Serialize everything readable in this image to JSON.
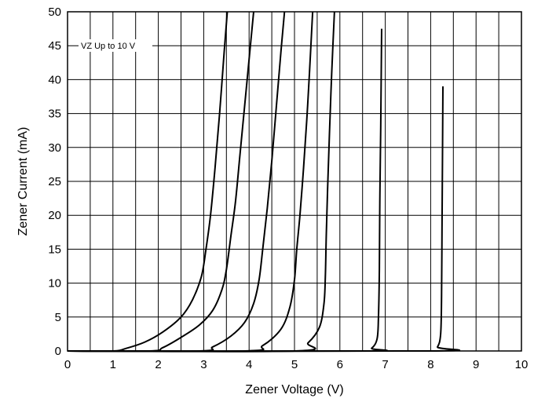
{
  "chart_data": {
    "type": "line",
    "title": "",
    "xlabel": "Zener Voltage (V)",
    "ylabel": "Zener Current (mA)",
    "xlim": [
      0,
      10
    ],
    "ylim": [
      0,
      50
    ],
    "x_ticks": [
      "0",
      "1",
      "2",
      "3",
      "4",
      "5",
      "6",
      "7",
      "8",
      "9",
      "10"
    ],
    "y_ticks": [
      "0",
      "5",
      "10",
      "15",
      "20",
      "25",
      "30",
      "35",
      "40",
      "45",
      "50"
    ],
    "grid": true,
    "minor_x_grid_step": 0.5,
    "annotation": "VZ Up to 10 V",
    "line_color": "#000000",
    "series": [
      {
        "points": [
          [
            0,
            0
          ],
          [
            1.0,
            0
          ],
          [
            1.3,
            0.4
          ],
          [
            1.7,
            1.3
          ],
          [
            2.1,
            2.8
          ],
          [
            2.5,
            5.0
          ],
          [
            2.75,
            7.5
          ],
          [
            2.95,
            11
          ],
          [
            3.05,
            15
          ],
          [
            3.15,
            20
          ],
          [
            3.25,
            27
          ],
          [
            3.35,
            35
          ],
          [
            3.45,
            44
          ],
          [
            3.52,
            50
          ]
        ]
      },
      {
        "points": [
          [
            0,
            0
          ],
          [
            1.8,
            0
          ],
          [
            2.1,
            0.5
          ],
          [
            2.5,
            2.0
          ],
          [
            2.9,
            3.8
          ],
          [
            3.2,
            6.0
          ],
          [
            3.4,
            9.0
          ],
          [
            3.5,
            12
          ],
          [
            3.6,
            17
          ],
          [
            3.7,
            22
          ],
          [
            3.8,
            29
          ],
          [
            3.9,
            36
          ],
          [
            4.0,
            43
          ],
          [
            4.1,
            50
          ]
        ]
      },
      {
        "points": [
          [
            0,
            0
          ],
          [
            2.9,
            0
          ],
          [
            3.2,
            0.6
          ],
          [
            3.6,
            2.2
          ],
          [
            3.9,
            4.2
          ],
          [
            4.1,
            7.0
          ],
          [
            4.22,
            10.5
          ],
          [
            4.3,
            15
          ],
          [
            4.4,
            21
          ],
          [
            4.5,
            28
          ],
          [
            4.6,
            36
          ],
          [
            4.7,
            44
          ],
          [
            4.78,
            50
          ]
        ]
      },
      {
        "points": [
          [
            0,
            0
          ],
          [
            3.9,
            0
          ],
          [
            4.3,
            0.8
          ],
          [
            4.7,
            3.2
          ],
          [
            4.9,
            6.5
          ],
          [
            5.0,
            10.5
          ],
          [
            5.05,
            15
          ],
          [
            5.12,
            20
          ],
          [
            5.2,
            27
          ],
          [
            5.27,
            34
          ],
          [
            5.33,
            41
          ],
          [
            5.4,
            50
          ]
        ]
      },
      {
        "points": [
          [
            0,
            0
          ],
          [
            5.0,
            0
          ],
          [
            5.3,
            1.2
          ],
          [
            5.55,
            3.5
          ],
          [
            5.65,
            7.0
          ],
          [
            5.68,
            11
          ],
          [
            5.7,
            17
          ],
          [
            5.73,
            24
          ],
          [
            5.77,
            32
          ],
          [
            5.82,
            41
          ],
          [
            5.88,
            50
          ]
        ]
      },
      {
        "points": [
          [
            0,
            0
          ],
          [
            6.5,
            0
          ],
          [
            6.7,
            0.4
          ],
          [
            6.82,
            1.8
          ],
          [
            6.85,
            5.0
          ],
          [
            6.87,
            12
          ],
          [
            6.88,
            22
          ],
          [
            6.9,
            33
          ],
          [
            6.92,
            47.5
          ]
        ]
      },
      {
        "points": [
          [
            0,
            0
          ],
          [
            8.0,
            0
          ],
          [
            8.15,
            0.6
          ],
          [
            8.22,
            2.5
          ],
          [
            8.24,
            8.0
          ],
          [
            8.25,
            18
          ],
          [
            8.26,
            28
          ],
          [
            8.27,
            39
          ]
        ]
      }
    ]
  }
}
